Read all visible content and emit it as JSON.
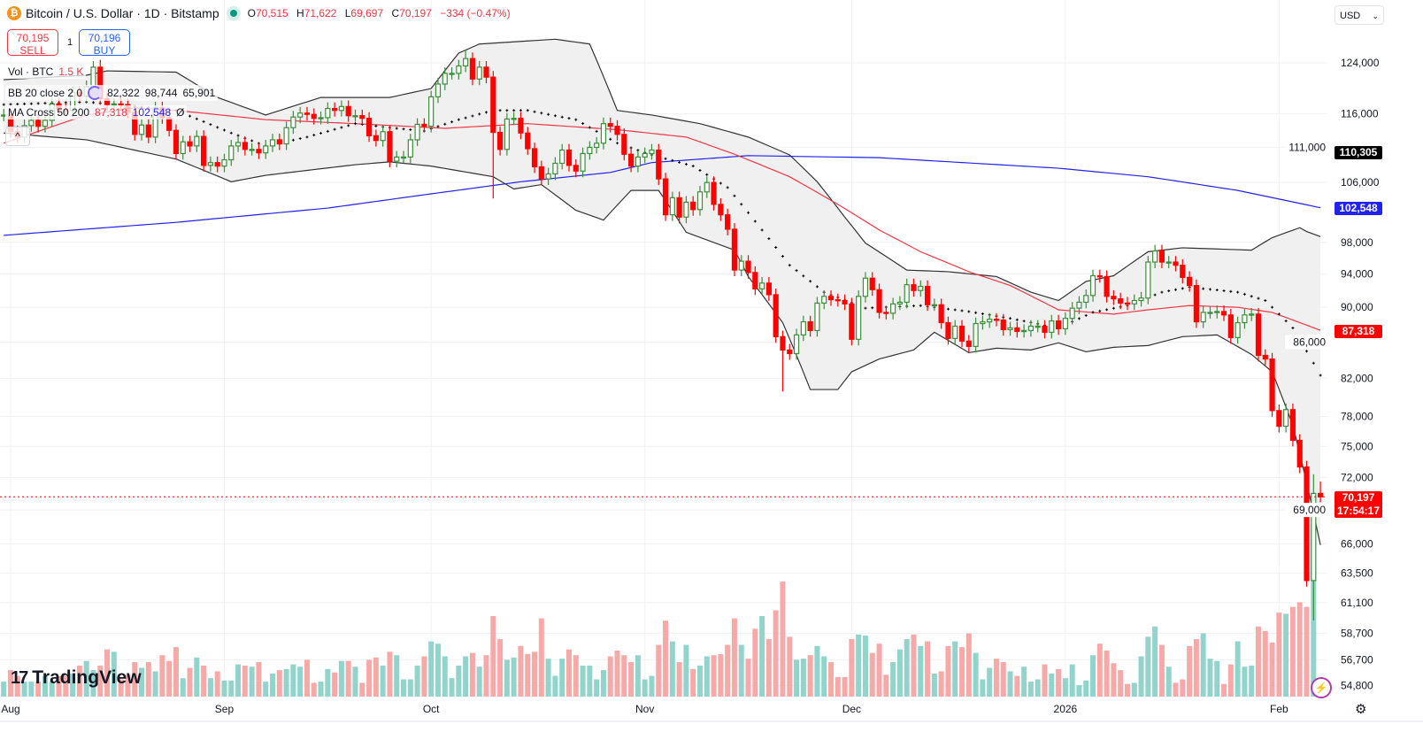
{
  "header": {
    "symbol_icon": "bitcoin-icon",
    "title": "Bitcoin / U.S. Dollar · 1D · Bitstamp",
    "status": "market-open-dot",
    "ohlc": {
      "o_label": "O",
      "o": "70,515",
      "h_label": "H",
      "h": "71,622",
      "l_label": "L",
      "l": "69,697",
      "c_label": "C",
      "c": "70,197",
      "change": "−334 (−0.47%)"
    }
  },
  "trade": {
    "sell_price": "70,195",
    "sell_label": "SELL",
    "quantity": "1",
    "buy_price": "70,196",
    "buy_label": "BUY"
  },
  "legend": {
    "volume": {
      "name": "Vol · BTC",
      "value": "1.5 K"
    },
    "bb": {
      "name": "BB 20 close 2 0",
      "basis": "82,322",
      "upper": "98,744",
      "lower": "65,901"
    },
    "ma": {
      "name": "MA Cross 50 200",
      "fast": "87,318",
      "slow": "102,548",
      "extra": "Ø"
    },
    "collapse_icon": "chevron-up-icon"
  },
  "currency": "USD",
  "price_labels": {
    "bb_upper_prev": "110,305",
    "ma200": "102,548",
    "ma50": "87,318",
    "last": "70,197",
    "countdown": "17:54:17"
  },
  "brand": "TradingView",
  "colors": {
    "up": "#3b8e3b",
    "down": "#ff0000",
    "vol_up": "#92d3cc",
    "vol_down": "#f7a9a8",
    "ma50": "#f23645",
    "ma200": "#2222ee",
    "bb": "#333333",
    "bb_fill": "#f0f0f0",
    "last": "#ff0000"
  },
  "chart_data": {
    "type": "candlestick",
    "title": "Bitcoin / U.S. Dollar · 1D · Bitstamp",
    "y_scale": "log",
    "ylim": [
      54000,
      131000
    ],
    "y_ticks": [
      124000,
      116000,
      111000,
      106000,
      98000,
      94000,
      90000,
      86000,
      82000,
      78000,
      75000,
      72000,
      69000,
      66000,
      63500,
      61100,
      58700,
      56700,
      54800
    ],
    "y_tick_labels": [
      "124,000",
      "116,000",
      "111,000",
      "106,000",
      "98,000",
      "94,000",
      "90,000",
      "86,000",
      "82,000",
      "78,000",
      "75,000",
      "72,000",
      "69,000",
      "66,000",
      "63,500",
      "61,100",
      "58,700",
      "56,700",
      "54,800"
    ],
    "x_ticks": [
      {
        "date": "2025-08-01",
        "label": "Aug"
      },
      {
        "date": "2025-09-01",
        "label": "Sep"
      },
      {
        "date": "2025-10-01",
        "label": "Oct"
      },
      {
        "date": "2025-11-01",
        "label": "Nov"
      },
      {
        "date": "2025-12-01",
        "label": "Dec"
      },
      {
        "date": "2026-01-01",
        "label": "2026"
      },
      {
        "date": "2026-02-01",
        "label": "Feb"
      }
    ],
    "grid": true,
    "close": {
      "2025-07-31": [
        115800
      ],
      "2025-08-01": [
        113300,
        112500,
        114200,
        115000,
        114100,
        115000,
        117500,
        116600,
        116500,
        119300,
        118700,
        120200,
        123300,
        118300,
        117400,
        117500,
        117400,
        116200,
        112900,
        114300,
        112500,
        116900,
        115400,
        113500,
        110100,
        111800,
        111200,
        112600,
        108400,
        108800,
        108300
      ],
      "2025-09-01": [
        109200,
        111200,
        111700,
        110700,
        110700,
        110200,
        111200,
        112100,
        111500,
        113900,
        115500,
        116100,
        115900,
        115300,
        115400,
        116800,
        116500,
        117100,
        115700,
        115700,
        115300,
        112700,
        112000,
        113300,
        109000,
        109600,
        109600,
        112100,
        114400,
        114100
      ],
      "2025-10-01": [
        118600,
        120600,
        122300,
        122300,
        123500,
        124700,
        121400,
        123300,
        121700,
        113200,
        110700,
        115200,
        115300,
        113100,
        110800,
        108200,
        106500,
        107200,
        108700,
        110600,
        108400,
        107600,
        110100,
        111000,
        111600,
        114500,
        114100,
        112900,
        110000,
        108300,
        109600
      ],
      "2025-11-01": [
        110100,
        110600,
        106500,
        101600,
        103900,
        101300,
        103300,
        102300,
        104700,
        106000,
        103000,
        101600,
        99700,
        94500,
        95600,
        94200,
        92200,
        92900,
        91500,
        86600,
        85100,
        84700,
        86800,
        88300,
        87300,
        90500,
        91300,
        90900,
        90800,
        90400
      ],
      "2025-12-01": [
        86300,
        91300,
        93500,
        92100,
        89400,
        89300,
        90400,
        90600,
        92700,
        92000,
        92500,
        90300,
        90300,
        88200,
        86400,
        87800,
        86100,
        85500,
        88100,
        88300,
        88600,
        88500,
        87400,
        87600,
        87200,
        87300,
        87800,
        87800,
        87100,
        88400,
        87500
      ],
      "2026-01-01": [
        88700,
        89900,
        90600,
        91400,
        93800,
        93700,
        91300,
        91000,
        90500,
        90400,
        90800,
        91100,
        95500,
        96900,
        95500,
        95500,
        95100,
        93600,
        92600,
        88300,
        89400,
        89400,
        89500,
        89100,
        86500,
        88200,
        89100,
        89200,
        84500,
        84100,
        78600
      ],
      "2026-02-01": [
        77000,
        78700,
        75600,
        73000,
        62900,
        70515,
        70197
      ]
    },
    "wicks": {
      "2025-08-14": {
        "high": 124500
      },
      "2025-10-06": {
        "high": 126200
      },
      "2025-10-10": {
        "low": 103800
      },
      "2025-11-21": {
        "low": 80600
      },
      "2026-02-05": {
        "low": 62400
      },
      "2026-02-06": {
        "high": 72300,
        "low": 59700
      },
      "2026-02-07": {
        "open": 70515,
        "high": 71622,
        "low": 69697
      }
    },
    "volume_btc_thousands": {
      "2025-07-31": [
        1.3
      ],
      "2025-08-01": [
        2.3,
        1.8,
        1.3,
        1.3,
        1.3,
        1.8,
        1.3,
        1.8,
        1.8,
        2.0,
        2.7,
        3.1,
        2.3,
        2.7,
        4.1,
        3.9,
        1.5,
        1.9,
        3.0,
        2.5,
        3.0,
        2.2,
        3.6,
        3.1,
        4.3,
        1.6,
        2.5,
        3.4,
        2.7,
        1.6,
        2.2
      ],
      "2025-09-01": [
        1.4,
        1.4,
        2.8,
        2.7,
        2.6,
        3.0,
        1.3,
        2.0,
        2.3,
        2.4,
        2.8,
        2.6,
        3.2,
        1.2,
        1.3,
        2.4,
        2.1,
        3.1,
        3.1,
        2.6,
        1.2,
        3.2,
        3.4,
        2.7,
        3.9,
        3.6,
        1.5,
        1.5,
        2.7,
        3.5
      ],
      "2025-10-01": [
        4.8,
        4.6,
        3.5,
        1.6,
        2.7,
        3.5,
        3.8,
        2.6,
        3.6,
        7.0,
        5.0,
        3.2,
        3.4,
        4.4,
        3.7,
        3.9,
        6.8,
        3.3,
        1.8,
        3.3,
        4.1,
        3.6,
        2.7,
        2.7,
        1.5,
        2.3,
        3.5,
        4.0,
        3.6,
        3.0,
        3.6
      ],
      "2025-11-01": [
        1.5,
        1.8,
        4.5,
        6.6,
        4.8,
        3.0,
        4.5,
        2.4,
        2.7,
        3.5,
        3.6,
        3.7,
        4.5,
        6.8,
        4.5,
        3.3,
        5.9,
        7.0,
        5.0,
        7.5,
        10.0,
        5.2,
        3.2,
        3.3,
        3.6,
        4.4,
        3.5,
        3.0,
        1.7,
        1.7
      ],
      "2025-12-01": [
        5.0,
        5.4,
        5.3,
        3.8,
        4.6,
        1.9,
        3.0,
        4.1,
        5.0,
        5.4,
        4.4,
        4.8,
        2.0,
        2.2,
        4.4,
        4.8,
        4.3,
        5.5,
        3.8,
        1.5,
        2.5,
        3.3,
        3.0,
        2.2,
        1.8,
        2.6,
        1.3,
        1.5,
        2.8,
        2.0,
        2.4
      ],
      "2026-01-01": [
        1.6,
        2.8,
        1.0,
        1.4,
        3.6,
        4.6,
        4.0,
        2.9,
        2.3,
        1.1,
        1.2,
        3.5,
        5.2,
        6.1,
        4.5,
        2.6,
        1.2,
        1.5,
        4.4,
        5.0,
        5.5,
        3.3,
        3.1,
        1.1,
        2.8,
        4.8,
        2.6,
        2.7,
        6.1,
        5.7,
        4.7
      ],
      "2026-02-01": [
        7.3,
        7.2,
        7.8,
        8.2,
        7.8,
        14.5,
        1.5
      ]
    },
    "indicators": {
      "bb_upper": [
        [
          "2025-07-31",
          121300
        ],
        [
          "2025-08-12",
          122000
        ],
        [
          "2025-08-15",
          122700
        ],
        [
          "2025-08-25",
          122500
        ],
        [
          "2025-08-31",
          118500
        ],
        [
          "2025-09-07",
          115800
        ],
        [
          "2025-09-15",
          118500
        ],
        [
          "2025-09-25",
          118500
        ],
        [
          "2025-10-01",
          119900
        ],
        [
          "2025-10-05",
          125600
        ],
        [
          "2025-10-08",
          127100
        ],
        [
          "2025-10-19",
          127900
        ],
        [
          "2025-10-24",
          127100
        ],
        [
          "2025-10-28",
          116500
        ],
        [
          "2025-11-02",
          115800
        ],
        [
          "2025-11-09",
          114500
        ],
        [
          "2025-11-16",
          112500
        ],
        [
          "2025-11-22",
          109900
        ],
        [
          "2025-11-26",
          106100
        ],
        [
          "2025-11-30",
          101300
        ],
        [
          "2025-12-03",
          97900
        ],
        [
          "2025-12-09",
          94500
        ],
        [
          "2025-12-15",
          94300
        ],
        [
          "2025-12-22",
          93700
        ],
        [
          "2025-12-27",
          91800
        ],
        [
          "2025-12-31",
          90800
        ],
        [
          "2026-01-04",
          93100
        ],
        [
          "2026-01-08",
          93800
        ],
        [
          "2026-01-13",
          96800
        ],
        [
          "2026-01-18",
          97300
        ],
        [
          "2026-01-28",
          97000
        ],
        [
          "2026-01-31",
          98600
        ],
        [
          "2026-02-04",
          99900
        ],
        [
          "2026-02-05",
          99400
        ],
        [
          "2026-02-07",
          98744
        ]
      ],
      "bb_basis": [
        [
          "2025-07-31",
          117400
        ],
        [
          "2025-08-12",
          117800
        ],
        [
          "2025-08-25",
          116500
        ],
        [
          "2025-09-02",
          113100
        ],
        [
          "2025-09-07",
          111200
        ],
        [
          "2025-09-13",
          112500
        ],
        [
          "2025-09-20",
          114500
        ],
        [
          "2025-09-26",
          113800
        ],
        [
          "2025-09-30",
          113400
        ],
        [
          "2025-10-05",
          115100
        ],
        [
          "2025-10-10",
          116500
        ],
        [
          "2025-10-15",
          116500
        ],
        [
          "2025-10-22",
          115100
        ],
        [
          "2025-10-28",
          111600
        ],
        [
          "2025-11-02",
          109900
        ],
        [
          "2025-11-08",
          108300
        ],
        [
          "2025-11-13",
          105300
        ],
        [
          "2025-11-18",
          99600
        ],
        [
          "2025-11-22",
          95100
        ],
        [
          "2025-11-27",
          91800
        ],
        [
          "2025-12-03",
          89900
        ],
        [
          "2025-12-11",
          90200
        ],
        [
          "2025-12-18",
          89500
        ],
        [
          "2025-12-24",
          88700
        ],
        [
          "2025-12-31",
          87600
        ],
        [
          "2026-01-05",
          89400
        ],
        [
          "2026-01-10",
          90200
        ],
        [
          "2026-01-15",
          91800
        ],
        [
          "2026-01-19",
          92400
        ],
        [
          "2026-01-26",
          91800
        ],
        [
          "2026-01-30",
          90800
        ],
        [
          "2026-02-03",
          87600
        ],
        [
          "2026-02-07",
          82322
        ]
      ],
      "bb_lower": [
        [
          "2025-07-31",
          113100
        ],
        [
          "2025-08-12",
          112100
        ],
        [
          "2025-08-25",
          109300
        ],
        [
          "2025-09-02",
          106100
        ],
        [
          "2025-09-07",
          107000
        ],
        [
          "2025-09-20",
          108500
        ],
        [
          "2025-09-25",
          108900
        ],
        [
          "2025-10-01",
          108300
        ],
        [
          "2025-10-10",
          106800
        ],
        [
          "2025-10-13",
          105100
        ],
        [
          "2025-10-17",
          105700
        ],
        [
          "2025-10-22",
          102200
        ],
        [
          "2025-10-26",
          100900
        ],
        [
          "2025-10-30",
          104900
        ],
        [
          "2025-11-03",
          104900
        ],
        [
          "2025-11-07",
          99300
        ],
        [
          "2025-11-14",
          97000
        ],
        [
          "2025-11-16",
          93700
        ],
        [
          "2025-11-21",
          88200
        ],
        [
          "2025-11-25",
          80800
        ],
        [
          "2025-11-29",
          80800
        ],
        [
          "2025-12-01",
          82700
        ],
        [
          "2025-12-05",
          84100
        ],
        [
          "2025-12-10",
          85100
        ],
        [
          "2025-12-13",
          87100
        ],
        [
          "2025-12-18",
          84800
        ],
        [
          "2025-12-22",
          85300
        ],
        [
          "2025-12-27",
          85100
        ],
        [
          "2025-12-31",
          85900
        ],
        [
          "2026-01-04",
          84900
        ],
        [
          "2026-01-08",
          85400
        ],
        [
          "2026-01-13",
          85600
        ],
        [
          "2026-01-18",
          86600
        ],
        [
          "2026-01-23",
          86800
        ],
        [
          "2026-01-28",
          84600
        ],
        [
          "2026-01-31",
          82700
        ],
        [
          "2026-02-03",
          77100
        ],
        [
          "2026-02-07",
          65901
        ]
      ],
      "ma50": [
        [
          "2025-07-31",
          111600
        ],
        [
          "2025-08-12",
          115800
        ],
        [
          "2025-08-19",
          116900
        ],
        [
          "2025-08-25",
          116500
        ],
        [
          "2025-09-07",
          115100
        ],
        [
          "2025-09-20",
          114500
        ],
        [
          "2025-10-03",
          113800
        ],
        [
          "2025-10-15",
          114500
        ],
        [
          "2025-10-28",
          113600
        ],
        [
          "2025-11-07",
          112500
        ],
        [
          "2025-11-14",
          110000
        ],
        [
          "2025-11-22",
          106800
        ],
        [
          "2025-11-29",
          103000
        ],
        [
          "2025-12-05",
          99600
        ],
        [
          "2025-12-11",
          96800
        ],
        [
          "2025-12-18",
          94300
        ],
        [
          "2025-12-24",
          92600
        ],
        [
          "2025-12-31",
          89700
        ],
        [
          "2026-01-08",
          89200
        ],
        [
          "2026-01-13",
          89700
        ],
        [
          "2026-01-19",
          90200
        ],
        [
          "2026-01-26",
          90000
        ],
        [
          "2026-01-31",
          89400
        ],
        [
          "2026-02-07",
          87318
        ]
      ],
      "ma200": [
        [
          "2025-07-31",
          98900
        ],
        [
          "2025-08-25",
          100600
        ],
        [
          "2025-09-16",
          102500
        ],
        [
          "2025-10-14",
          106100
        ],
        [
          "2025-10-27",
          107400
        ],
        [
          "2025-11-02",
          108800
        ],
        [
          "2025-11-16",
          109800
        ],
        [
          "2025-12-05",
          109500
        ],
        [
          "2025-12-31",
          108000
        ],
        [
          "2026-01-13",
          106800
        ],
        [
          "2026-01-26",
          104900
        ],
        [
          "2026-02-07",
          102548
        ]
      ]
    }
  }
}
